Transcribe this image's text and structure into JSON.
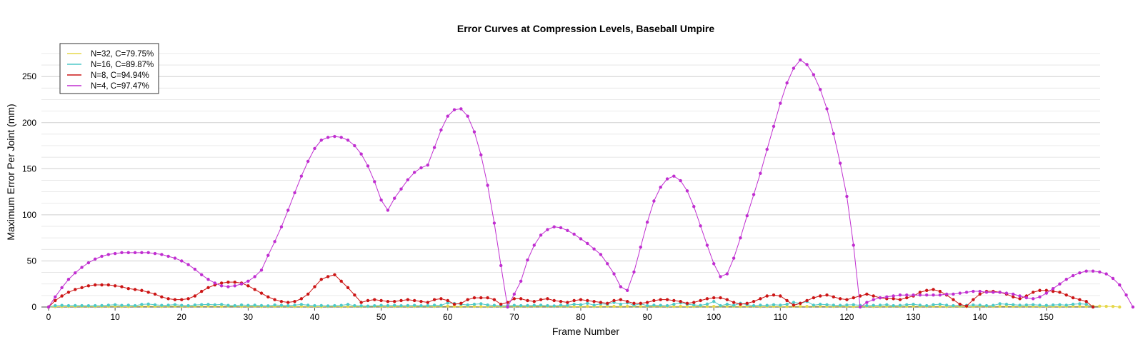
{
  "chart_data": {
    "type": "line",
    "title": "Error Curves at Compression Levels, Baseball Umpire",
    "xlabel": "Frame Number",
    "ylabel": "Maximum Error Per Joint (mm)",
    "xlim": [
      0,
      157
    ],
    "ylim": [
      0,
      285
    ],
    "x_ticks": [
      0,
      10,
      20,
      30,
      40,
      50,
      60,
      70,
      80,
      90,
      100,
      110,
      120,
      130,
      140,
      150
    ],
    "y_ticks": [
      0,
      50,
      100,
      150,
      200,
      250
    ],
    "grid": "horizontal",
    "legend_position": "top-left",
    "series": [
      {
        "name": "N=32, C=79.75%",
        "color": "#e6d84a",
        "values": [
          0,
          0.4,
          0.5,
          0.6,
          0.5,
          0.7,
          0.6,
          0.5,
          0.6,
          0.7,
          0.8,
          0.6,
          0.5,
          0.7,
          0.8,
          0.9,
          0.7,
          0.6,
          0.8,
          0.9,
          0.7,
          0.6,
          0.8,
          0.9,
          1.0,
          0.8,
          0.7,
          0.9,
          0.8,
          0.6,
          0.7,
          0.8,
          0.6,
          0.5,
          0.7,
          0.8,
          0.6,
          0.5,
          0.7,
          0.6,
          0.5,
          0.4,
          0.6,
          0.7,
          0.5,
          0.6,
          0.7,
          0.5,
          0.6,
          0.8,
          0.7,
          0.5,
          0.6,
          0.7,
          0.5,
          0.6,
          0.8,
          0.7,
          0.6,
          0.8,
          0.9,
          0.7,
          0.6,
          0.8,
          0.7,
          0.5,
          0.6,
          0.7,
          0.5,
          0.6,
          0.8,
          0.7,
          0.6,
          0.8,
          0.9,
          0.7,
          0.6,
          0.8,
          0.7,
          0.5,
          0.6,
          0.7,
          0.5,
          0.6,
          0.8,
          0.7,
          0.6,
          0.8,
          0.9,
          0.7,
          0.6,
          0.8,
          0.7,
          0.5,
          0.6,
          0.7,
          0.5,
          0.6,
          0.8,
          0.7,
          0.6,
          0.8,
          0.9,
          0.7,
          0.6,
          0.8,
          0.7,
          0.5,
          0.6,
          0.7,
          0.5,
          0.6,
          0.8,
          0.7,
          0.6,
          0.8,
          0.9,
          0.7,
          0.6,
          0.8,
          0.7,
          0.5,
          0.6,
          0.7,
          0.5,
          0.6,
          0.8,
          0.7,
          0.6,
          0.8,
          0.9,
          0.7,
          0.6,
          0.8,
          0.7,
          0.5,
          0.6,
          0.7,
          0.5,
          0.6,
          0.8,
          0.7,
          0.6,
          0.8,
          0.9,
          0.7,
          0.6,
          0.8,
          0.7,
          0.5,
          0.6,
          0.7,
          0.5,
          0.6,
          0.8,
          0.7,
          0.6,
          0.8,
          0.9,
          0.7,
          0.6,
          0
        ]
      },
      {
        "name": "N=16, C=89.87%",
        "color": "#4ec9c9",
        "values": [
          0,
          1.5,
          1.8,
          1.5,
          1.6,
          1.5,
          1.4,
          1.5,
          1.6,
          2.0,
          2.5,
          1.8,
          2.0,
          1.5,
          2.8,
          3.2,
          2.4,
          1.8,
          2.0,
          2.6,
          1.8,
          1.5,
          2.2,
          2.6,
          2.8,
          2.4,
          2.8,
          1.8,
          1.5,
          2.2,
          1.8,
          2.0,
          1.6,
          1.3,
          2.2,
          1.8,
          1.5,
          2.0,
          2.8,
          2.0,
          1.5,
          1.6,
          1.2,
          1.5,
          1.8,
          2.8,
          1.5,
          1.3,
          1.0,
          1.4,
          1.8,
          1.5,
          1.8,
          1.4,
          1.6,
          1.8,
          1.4,
          1.6,
          2.0,
          1.8,
          4.5,
          3.8,
          3.0,
          2.2,
          3.0,
          3.5,
          2.2,
          1.8,
          1.5,
          1.4,
          1.8,
          1.5,
          1.6,
          1.8,
          2.0,
          1.5,
          1.2,
          2.0,
          1.8,
          3.0,
          2.5,
          4.0,
          2.0,
          3.5,
          3.0,
          5.0,
          3.0,
          4.5,
          2.0,
          3.5,
          1.5,
          2.0,
          1.8,
          1.5,
          3.0,
          4.5,
          3.0,
          2.2,
          1.8,
          3.2,
          6.0,
          1.5,
          3.0,
          1.8,
          4.0,
          2.5,
          1.5,
          2.0,
          1.8,
          2.5,
          2.0,
          3.0,
          5.0,
          4.0,
          6.0,
          2.0,
          3.0,
          2.5,
          2.0,
          1.8,
          2.2,
          2.5,
          1.8,
          1.5,
          1.8,
          2.0,
          2.5,
          1.5,
          1.8,
          2.5,
          3.0,
          2.0,
          1.5,
          2.5,
          3.0,
          2.0,
          1.5,
          2.0,
          1.8,
          2.2,
          2.0,
          1.5,
          1.8,
          3.5,
          3.0,
          2.5,
          2.0,
          2.2,
          2.5,
          2.0,
          1.8,
          2.2,
          2.5,
          2.0,
          3.0,
          3.5,
          3.0,
          0
        ]
      },
      {
        "name": "N=8, C=94.94%",
        "color": "#cc1515",
        "values": [
          0,
          7,
          12,
          16,
          19,
          21,
          23,
          24,
          24,
          24,
          23,
          22,
          20,
          19,
          18,
          16,
          14,
          11,
          9,
          8,
          8,
          9,
          12,
          17,
          21,
          24,
          26,
          27,
          27,
          26,
          23,
          19,
          15,
          11,
          8,
          6,
          5,
          6,
          9,
          14,
          22,
          30,
          33,
          35,
          28,
          21,
          13,
          5,
          7,
          8,
          7,
          6,
          6,
          7,
          8,
          7,
          6,
          5,
          8,
          9,
          7,
          3,
          4,
          8,
          10,
          10,
          10,
          8,
          3,
          5,
          9,
          9,
          7,
          6,
          8,
          9,
          7,
          6,
          5,
          7,
          8,
          7,
          6,
          5,
          4,
          7,
          8,
          6,
          4,
          4,
          5,
          7,
          8,
          8,
          7,
          6,
          4,
          5,
          7,
          9,
          10,
          10,
          8,
          5,
          3,
          4,
          6,
          9,
          12,
          13,
          12,
          7,
          2,
          4,
          7,
          10,
          12,
          13,
          11,
          9,
          8,
          10,
          12,
          14,
          12,
          10,
          9,
          9,
          8,
          10,
          12,
          16,
          18,
          19,
          17,
          13,
          8,
          3,
          1,
          8,
          14,
          17,
          17,
          16,
          14,
          11,
          9,
          12,
          16,
          18,
          18,
          17,
          16,
          13,
          10,
          8,
          6,
          0
        ]
      },
      {
        "name": "N=4, C=97.47%",
        "color": "#c02ed0",
        "values": [
          0,
          11,
          21,
          30,
          37,
          43,
          48,
          52,
          55,
          57,
          58,
          59,
          59,
          59,
          59,
          59,
          58,
          57,
          55,
          53,
          50,
          46,
          41,
          35,
          30,
          26,
          23,
          22,
          23,
          25,
          28,
          33,
          40,
          56,
          71,
          87,
          105,
          124,
          142,
          158,
          172,
          181,
          184,
          185,
          184,
          181,
          175,
          166,
          153,
          136,
          116,
          105,
          118,
          128,
          138,
          146,
          151,
          154,
          173,
          192,
          207,
          214,
          215,
          207,
          190,
          165,
          132,
          91,
          45,
          0,
          14,
          28,
          51,
          67,
          78,
          84,
          87,
          86,
          83,
          79,
          74,
          69,
          63,
          57,
          47,
          36,
          22,
          18,
          38,
          65,
          92,
          115,
          130,
          139,
          142,
          137,
          126,
          109,
          88,
          67,
          47,
          33,
          36,
          53,
          75,
          99,
          122,
          145,
          171,
          196,
          221,
          243,
          259,
          268,
          263,
          252,
          236,
          215,
          188,
          156,
          120,
          67,
          0,
          5,
          8,
          10,
          11,
          12,
          13,
          13,
          13,
          13,
          13,
          13,
          13,
          14,
          14,
          15,
          16,
          17,
          17,
          16,
          16,
          16,
          15,
          14,
          12,
          10,
          9,
          11,
          15,
          20,
          25,
          30,
          34,
          37,
          39,
          39,
          38,
          36,
          31,
          24,
          13,
          0
        ]
      }
    ]
  }
}
